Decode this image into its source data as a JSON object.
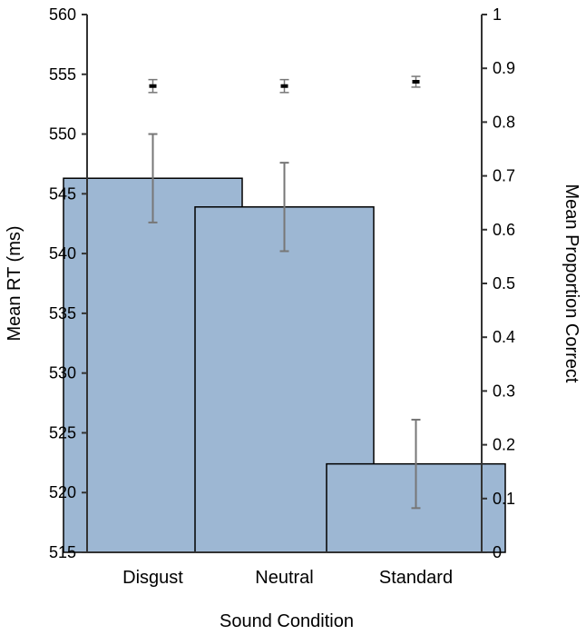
{
  "chart_data": {
    "type": "bar",
    "title": "",
    "xlabel": "Sound Condition",
    "ylabel": "Mean RT (ms)",
    "y2label": "Mean Proportion Correct",
    "categories": [
      "Disgust",
      "Neutral",
      "Standard"
    ],
    "ylim": [
      515,
      560
    ],
    "y2lim": [
      0,
      1
    ],
    "yticks": [
      "515",
      "520",
      "525",
      "530",
      "535",
      "540",
      "545",
      "550",
      "555",
      "560"
    ],
    "y2ticks": [
      "0",
      "0.1",
      "0.2",
      "0.3",
      "0.4",
      "0.5",
      "0.6",
      "0.7",
      "0.8",
      "0.9",
      "1"
    ],
    "grid": false,
    "bar_color": "#9db7d3",
    "series": [
      {
        "kind": "bar",
        "axis": "left",
        "values": [
          546.3,
          543.9,
          522.4
        ],
        "error": [
          3.7,
          3.7,
          3.7
        ]
      },
      {
        "kind": "point",
        "axis": "right",
        "values": [
          0.867,
          0.867,
          0.875
        ],
        "error": [
          0.012,
          0.012,
          0.01
        ]
      }
    ]
  }
}
